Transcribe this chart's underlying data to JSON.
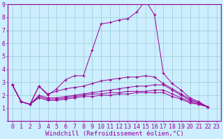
{
  "xlabel": "Windchill (Refroidissement éolien,°C)",
  "xlim": [
    -0.5,
    23.5
  ],
  "ylim": [
    0,
    9
  ],
  "bg_color": "#cceeff",
  "line_color": "#990099",
  "grid_color": "#99cccc",
  "curves": [
    [
      2.8,
      1.5,
      1.3,
      2.7,
      2.0,
      2.5,
      3.2,
      3.5,
      3.5,
      5.5,
      7.5,
      7.6,
      7.8,
      7.9,
      8.4,
      9.3,
      8.2,
      3.7,
      2.9,
      2.4,
      1.8,
      1.5,
      1.1
    ],
    [
      2.8,
      1.5,
      1.3,
      2.7,
      2.1,
      2.3,
      2.5,
      2.6,
      2.7,
      2.9,
      3.1,
      3.2,
      3.3,
      3.4,
      3.4,
      3.5,
      3.4,
      2.9,
      2.5,
      2.1,
      1.7,
      1.4,
      1.1
    ],
    [
      2.8,
      1.5,
      1.3,
      2.0,
      1.8,
      1.8,
      1.9,
      2.0,
      2.1,
      2.2,
      2.3,
      2.4,
      2.5,
      2.6,
      2.7,
      2.7,
      2.8,
      2.8,
      2.4,
      2.0,
      1.6,
      1.4,
      1.1
    ],
    [
      2.8,
      1.5,
      1.3,
      1.9,
      1.7,
      1.7,
      1.8,
      1.9,
      2.0,
      2.1,
      2.1,
      2.2,
      2.2,
      2.3,
      2.3,
      2.3,
      2.4,
      2.4,
      2.1,
      1.8,
      1.5,
      1.3,
      1.1
    ],
    [
      2.8,
      1.5,
      1.3,
      1.8,
      1.6,
      1.6,
      1.7,
      1.8,
      1.9,
      1.9,
      2.0,
      2.0,
      2.1,
      2.1,
      2.2,
      2.2,
      2.2,
      2.2,
      1.9,
      1.7,
      1.4,
      1.3,
      1.1
    ]
  ],
  "xtick_labels": [
    "0",
    "1",
    "2",
    "3",
    "4",
    "5",
    "6",
    "7",
    "8",
    "9",
    "10",
    "11",
    "12",
    "13",
    "14",
    "15",
    "16",
    "17",
    "18",
    "19",
    "20",
    "21",
    "22",
    "23"
  ],
  "ytick_labels": [
    "",
    "1",
    "2",
    "3",
    "4",
    "5",
    "6",
    "7",
    "8",
    "9"
  ],
  "font_size": 6,
  "label_font_size": 6.5
}
